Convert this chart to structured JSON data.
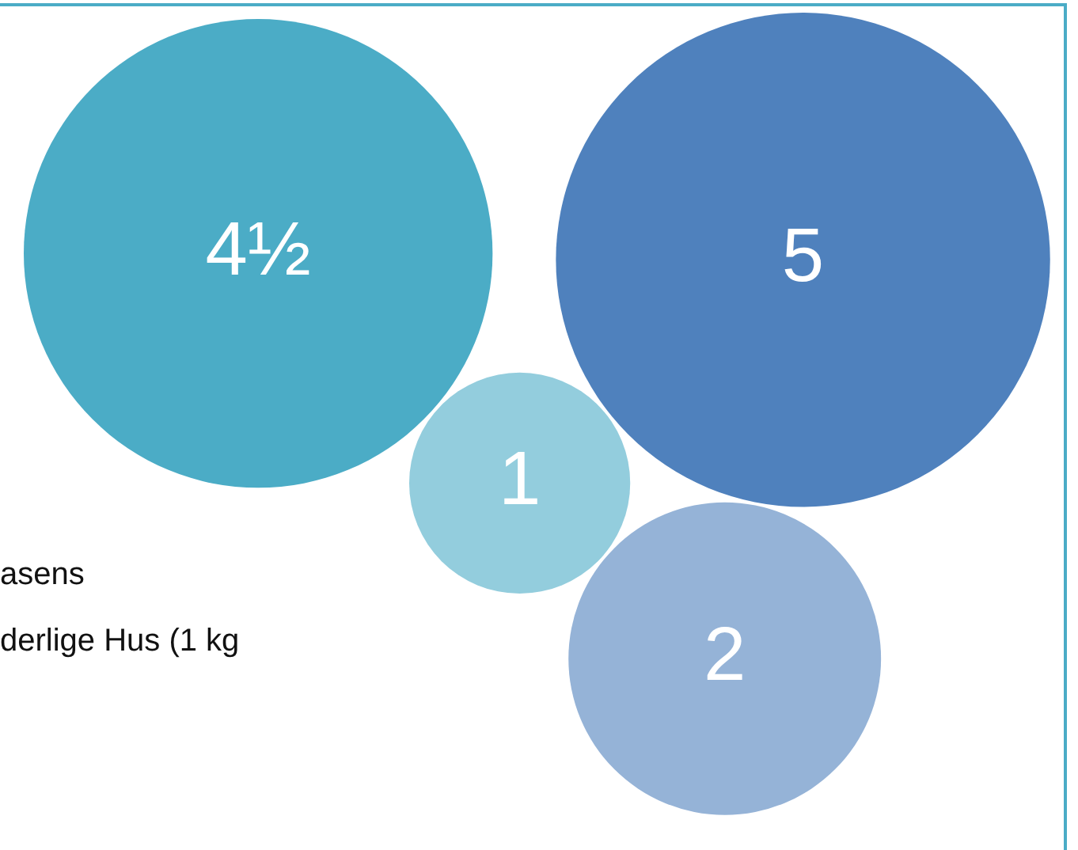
{
  "chart_data": {
    "type": "other",
    "categories": [
      null,
      null,
      null,
      null
    ],
    "values": [
      4.5,
      5,
      1,
      2
    ],
    "value_labels": [
      "4½",
      "5",
      "1",
      "2"
    ],
    "colors": [
      "#4bacc6",
      "#4f81bd",
      "#93cddd",
      "#95b3d7"
    ],
    "annotations": [
      "asens",
      "derlige Hus (1 kg"
    ]
  }
}
